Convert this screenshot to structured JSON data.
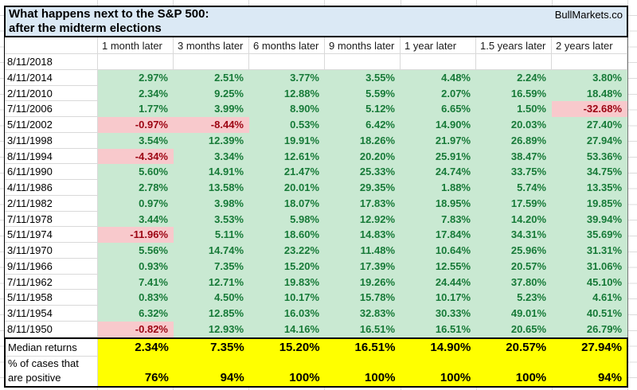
{
  "title": {
    "line1": "What happens next to the S&P 500:",
    "line2": "after the midterm elections",
    "brand": "BullMarkets.co"
  },
  "columns": [
    "1 month later",
    "3 months later",
    "6 months later",
    "9 months later",
    "1 year later",
    "1.5 years later",
    "2 years later"
  ],
  "rows": [
    {
      "date": "8/11/2018",
      "values": [
        "",
        "",
        "",
        "",
        "",
        "",
        ""
      ]
    },
    {
      "date": "4/11/2014",
      "values": [
        "2.97%",
        "2.51%",
        "3.77%",
        "3.55%",
        "4.48%",
        "2.24%",
        "3.80%"
      ]
    },
    {
      "date": "2/11/2010",
      "values": [
        "2.34%",
        "9.25%",
        "12.88%",
        "5.59%",
        "2.07%",
        "16.59%",
        "18.48%"
      ]
    },
    {
      "date": "7/11/2006",
      "values": [
        "1.77%",
        "3.99%",
        "8.90%",
        "5.12%",
        "6.65%",
        "1.50%",
        "-32.68%"
      ]
    },
    {
      "date": "5/11/2002",
      "values": [
        "-0.97%",
        "-8.44%",
        "0.53%",
        "6.42%",
        "14.90%",
        "20.03%",
        "27.40%"
      ]
    },
    {
      "date": "3/11/1998",
      "values": [
        "3.54%",
        "12.39%",
        "19.91%",
        "18.26%",
        "21.97%",
        "26.89%",
        "27.94%"
      ]
    },
    {
      "date": "8/11/1994",
      "values": [
        "-4.34%",
        "3.34%",
        "12.61%",
        "20.20%",
        "25.91%",
        "38.47%",
        "53.36%"
      ]
    },
    {
      "date": "6/11/1990",
      "values": [
        "5.60%",
        "14.91%",
        "21.47%",
        "25.33%",
        "24.74%",
        "33.75%",
        "34.75%"
      ]
    },
    {
      "date": "4/11/1986",
      "values": [
        "2.78%",
        "13.58%",
        "20.01%",
        "29.35%",
        "1.88%",
        "5.74%",
        "13.35%"
      ]
    },
    {
      "date": "2/11/1982",
      "values": [
        "0.97%",
        "3.98%",
        "18.07%",
        "17.83%",
        "18.95%",
        "17.59%",
        "19.85%"
      ]
    },
    {
      "date": "7/11/1978",
      "values": [
        "3.44%",
        "3.53%",
        "5.98%",
        "12.92%",
        "7.83%",
        "14.20%",
        "39.94%"
      ]
    },
    {
      "date": "5/11/1974",
      "values": [
        "-11.96%",
        "5.11%",
        "18.60%",
        "14.83%",
        "17.84%",
        "34.31%",
        "35.69%"
      ]
    },
    {
      "date": "3/11/1970",
      "values": [
        "5.56%",
        "14.74%",
        "23.22%",
        "11.48%",
        "10.64%",
        "25.96%",
        "31.31%"
      ]
    },
    {
      "date": "9/11/1966",
      "values": [
        "0.93%",
        "7.35%",
        "15.20%",
        "17.39%",
        "12.55%",
        "20.57%",
        "31.06%"
      ]
    },
    {
      "date": "7/11/1962",
      "values": [
        "7.41%",
        "12.71%",
        "19.83%",
        "19.26%",
        "24.44%",
        "37.80%",
        "45.10%"
      ]
    },
    {
      "date": "5/11/1958",
      "values": [
        "0.83%",
        "4.50%",
        "10.17%",
        "15.78%",
        "10.17%",
        "5.23%",
        "4.61%"
      ]
    },
    {
      "date": "3/11/1954",
      "values": [
        "6.32%",
        "12.85%",
        "16.03%",
        "32.83%",
        "30.33%",
        "49.01%",
        "40.51%"
      ]
    },
    {
      "date": "8/11/1950",
      "values": [
        "-0.82%",
        "12.93%",
        "14.16%",
        "16.51%",
        "16.51%",
        "20.65%",
        "26.79%"
      ]
    }
  ],
  "summary": {
    "median_label": "Median returns",
    "median_values": [
      "2.34%",
      "7.35%",
      "15.20%",
      "16.51%",
      "14.90%",
      "20.57%",
      "27.94%"
    ],
    "positive_label_line1": "% of cases that",
    "positive_label_line2": "are positive",
    "positive_values": [
      "76%",
      "94%",
      "100%",
      "100%",
      "100%",
      "100%",
      "94%"
    ]
  },
  "colors": {
    "header_fill": "#dbe9f5",
    "green_fill": "#c9e9d2",
    "green_text": "#177a38",
    "red_fill": "#f8c9cc",
    "red_text": "#9c0412",
    "yellow_fill": "#ffff00",
    "gridline": "#d9d9d9"
  }
}
